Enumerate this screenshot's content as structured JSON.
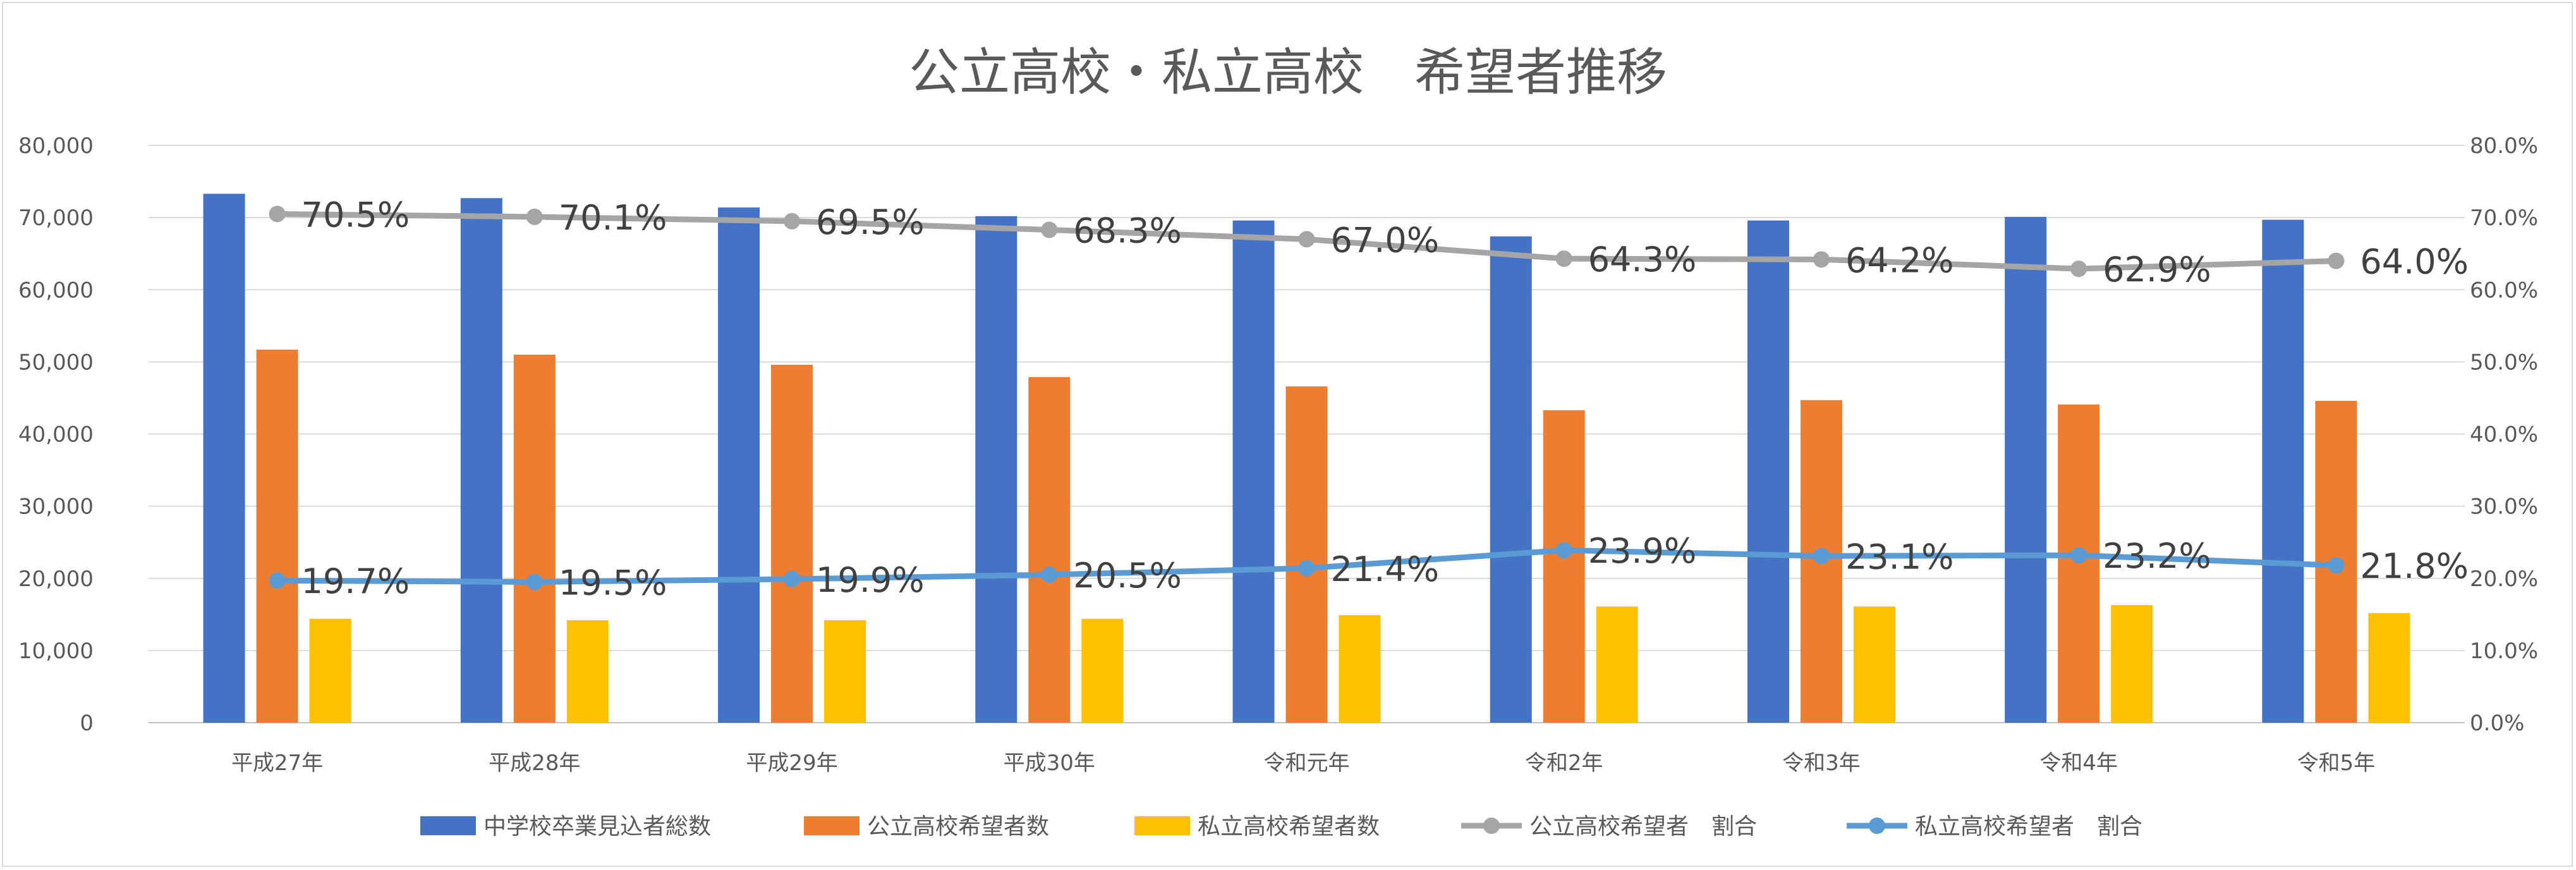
{
  "chart_data": {
    "type": "bar",
    "title": "公立高校・私立高校　希望者推移",
    "categories": [
      "平成27年",
      "平成28年",
      "平成29年",
      "平成30年",
      "令和元年",
      "令和2年",
      "令和3年",
      "令和4年",
      "令和5年"
    ],
    "y_left": {
      "ylim": [
        0,
        80000
      ],
      "ticks": [
        "0",
        "10,000",
        "20,000",
        "30,000",
        "40,000",
        "50,000",
        "60,000",
        "70,000",
        "80,000"
      ]
    },
    "y_right": {
      "ylim": [
        0,
        80
      ],
      "ticks": [
        "0.0%",
        "10.0%",
        "20.0%",
        "30.0%",
        "40.0%",
        "50.0%",
        "60.0%",
        "70.0%",
        "80.0%"
      ]
    },
    "series": [
      {
        "name": "中学校卒業見込者総数",
        "kind": "bar",
        "color": "#4472C4",
        "values": [
          73300,
          72700,
          71400,
          70200,
          69600,
          67400,
          69600,
          70100,
          69700
        ]
      },
      {
        "name": "公立高校希望者数",
        "kind": "bar",
        "color": "#ED7D31",
        "values": [
          51700,
          51000,
          49600,
          47900,
          46600,
          43300,
          44700,
          44100,
          44600
        ]
      },
      {
        "name": "私立高校希望者数",
        "kind": "bar",
        "color": "#FFC000",
        "values": [
          14400,
          14200,
          14200,
          14400,
          14900,
          16100,
          16100,
          16300,
          15200
        ]
      },
      {
        "name": "公立高校希望者　割合",
        "kind": "line",
        "axis": "right",
        "color": "#A5A5A5",
        "values": [
          70.5,
          70.1,
          69.5,
          68.3,
          67.0,
          64.3,
          64.2,
          62.9,
          64.0
        ],
        "labels": [
          "70.5%",
          "70.1%",
          "69.5%",
          "68.3%",
          "67.0%",
          "64.3%",
          "64.2%",
          "62.9%",
          "64.0%"
        ]
      },
      {
        "name": "私立高校希望者　割合",
        "kind": "line",
        "axis": "right",
        "color": "#5B9BD5",
        "values": [
          19.7,
          19.5,
          19.9,
          20.5,
          21.4,
          23.9,
          23.1,
          23.2,
          21.8
        ],
        "labels": [
          "19.7%",
          "19.5%",
          "19.9%",
          "20.5%",
          "21.4%",
          "23.9%",
          "23.1%",
          "23.2%",
          "21.8%"
        ]
      }
    ],
    "grid": true,
    "legend_position": "bottom"
  }
}
